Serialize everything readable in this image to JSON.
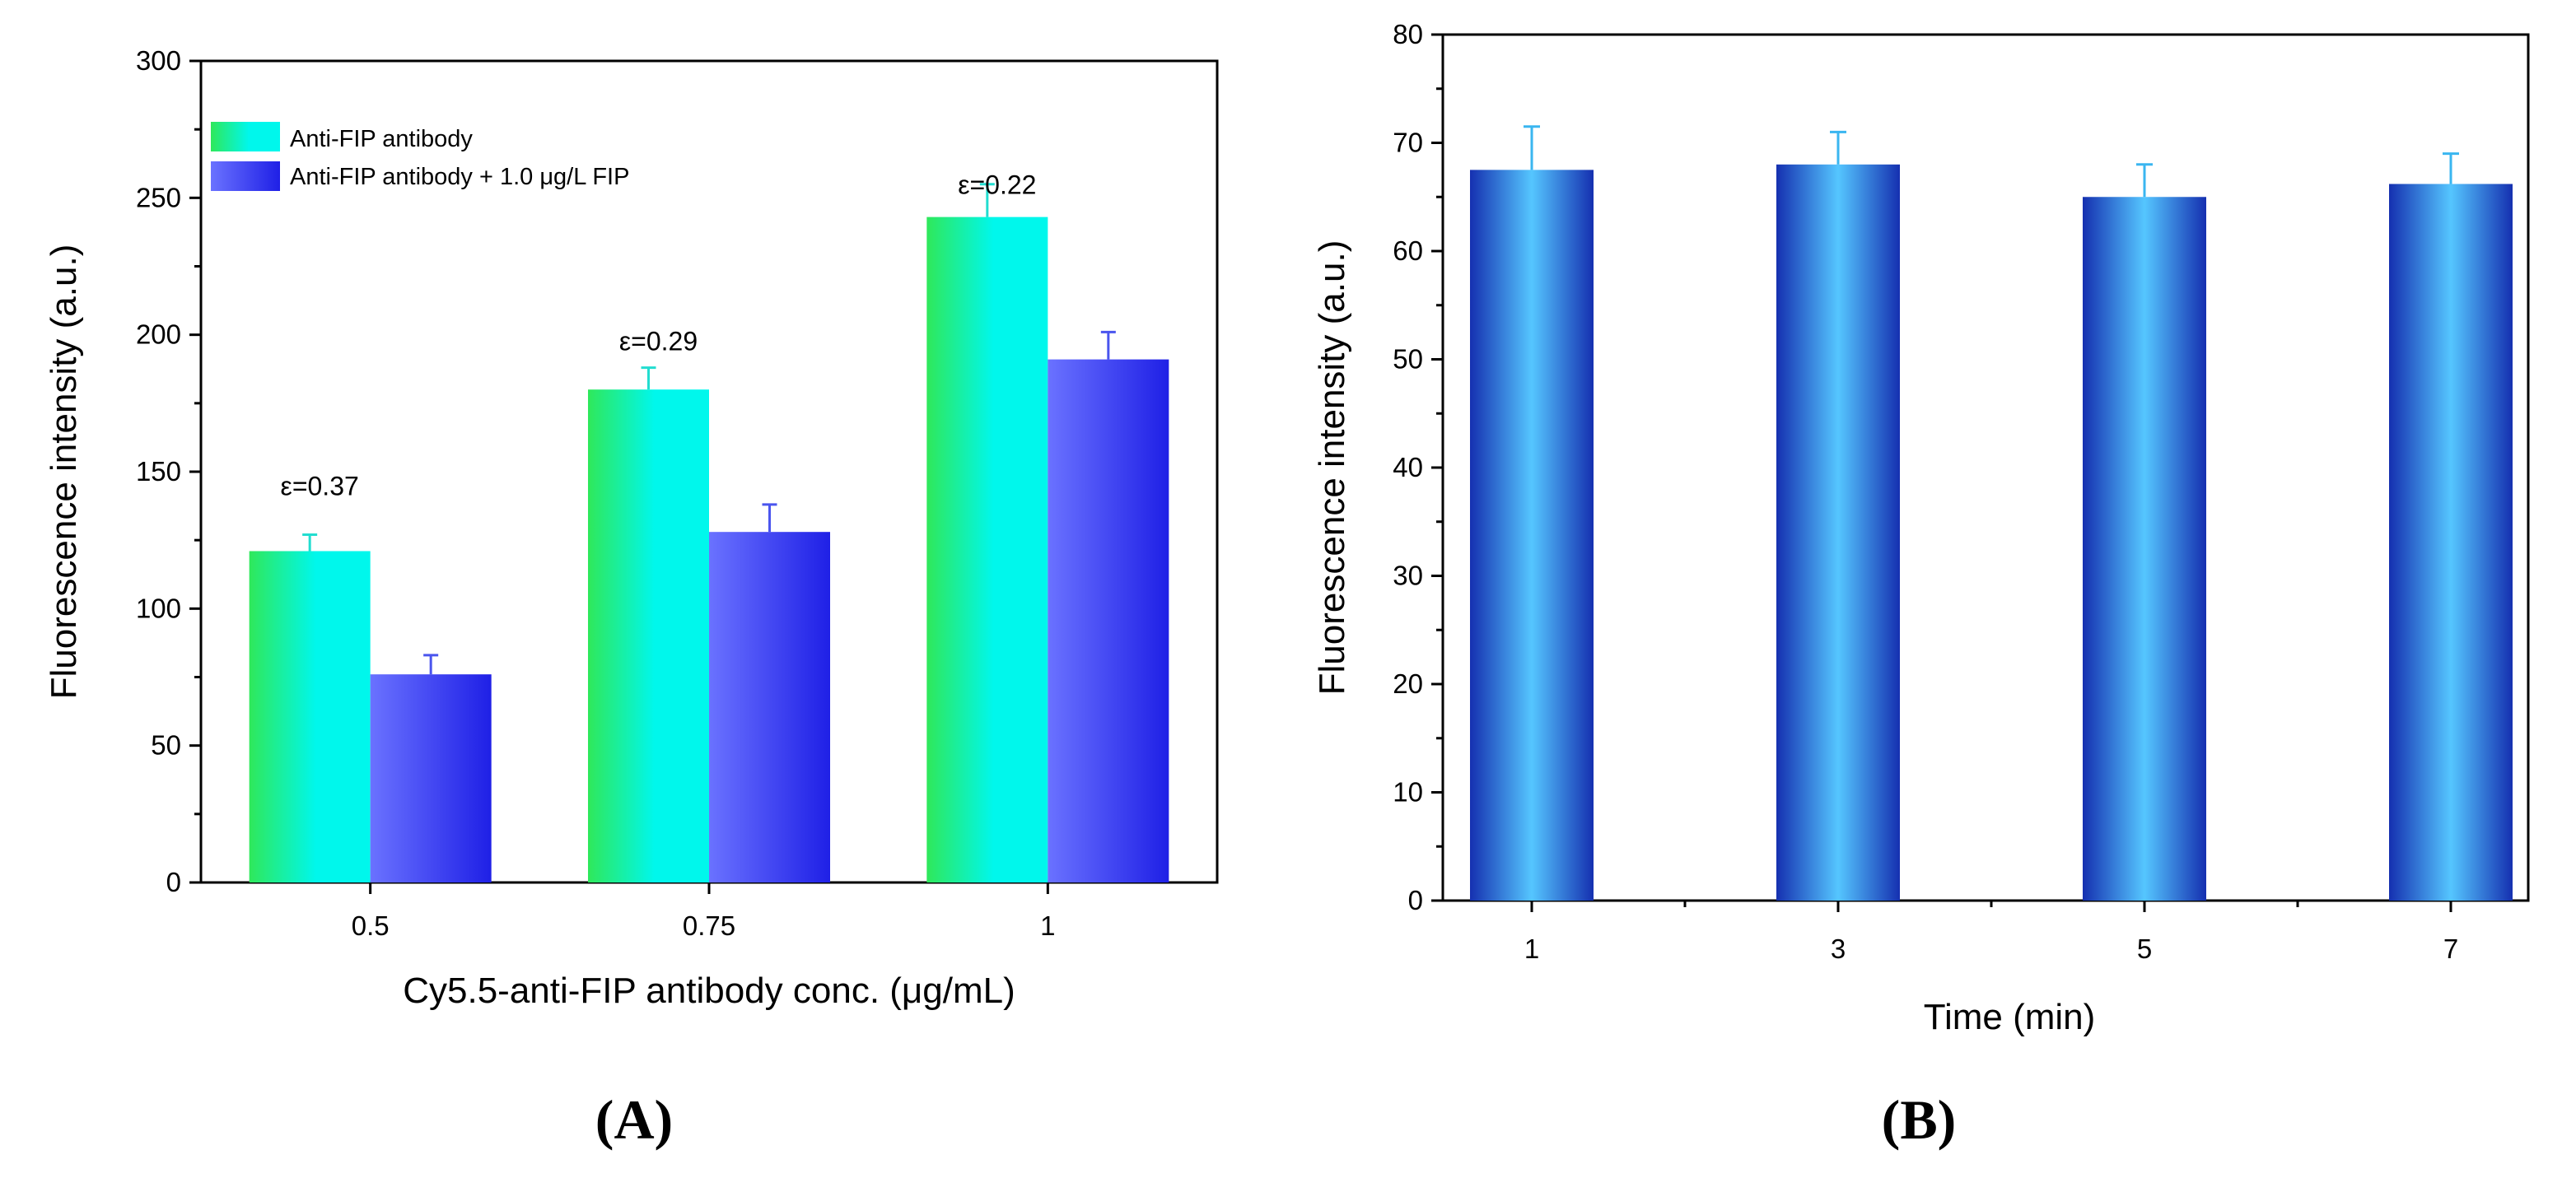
{
  "colors": {
    "series_a_top": "#2fe85a",
    "series_a_mid": "#00f7ec",
    "series_b_left": "#6a72ff",
    "series_b_right": "#1f20e6",
    "panel_b_edge": "#1530b0",
    "panel_b_center": "#55c6ff",
    "panel_b_error": "#3ab6f0",
    "error_a": "#22ddd0",
    "error_b": "#4a55ee"
  },
  "chart_data": [
    {
      "type": "bar",
      "panel_label": "(A)",
      "xlabel": "Cy5.5-anti-FIP antibody conc. (μg/mL)",
      "ylabel": "Fluorescence intensity (a.u.)",
      "ylim": [
        0,
        300
      ],
      "yticks": [
        "0",
        "50",
        "100",
        "150",
        "200",
        "250",
        "300"
      ],
      "categories": [
        "0.5",
        "0.75",
        "1"
      ],
      "legend_position": "top-left",
      "series": [
        {
          "name": "Anti-FIP antibody",
          "values": [
            121,
            180,
            243
          ],
          "errors": [
            6,
            8,
            12
          ]
        },
        {
          "name": "Anti-FIP antibody + 1.0 μg/L FIP",
          "values": [
            76,
            128,
            191
          ],
          "errors": [
            7,
            10,
            10
          ]
        }
      ],
      "annotations": [
        {
          "text": "ε=0.37",
          "category": "0.5",
          "y": 145
        },
        {
          "text": "ε=0.29",
          "category": "0.75",
          "y": 198
        },
        {
          "text": "ε=0.22",
          "category": "1",
          "y": 255
        }
      ]
    },
    {
      "type": "bar",
      "panel_label": "(B)",
      "xlabel": "Time (min)",
      "ylabel": "Fluorescence intensity (a.u.)",
      "ylim": [
        0,
        80
      ],
      "yticks": [
        "0",
        "10",
        "20",
        "30",
        "40",
        "50",
        "60",
        "70",
        "80"
      ],
      "categories": [
        "1",
        "3",
        "5",
        "7"
      ],
      "series": [
        {
          "name": "Fluorescence intensity",
          "values": [
            67.5,
            68,
            65,
            66.2
          ],
          "errors": [
            4,
            3,
            3,
            2.8
          ]
        }
      ]
    }
  ]
}
